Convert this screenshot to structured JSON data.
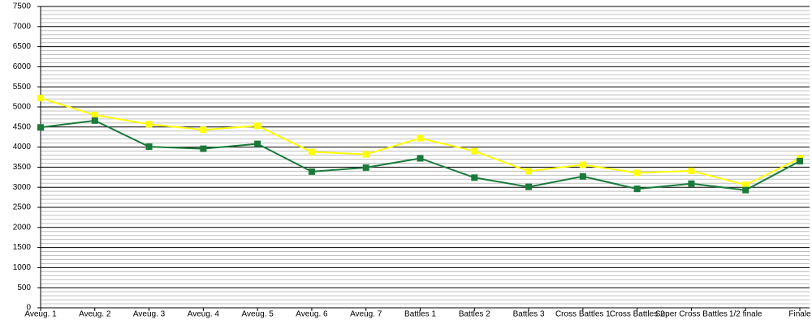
{
  "chart_data": {
    "type": "line",
    "categories": [
      "Aveug. 1",
      "Aveug. 2",
      "Aveug. 3",
      "Aveug. 4",
      "Aveug. 5",
      "Aveug. 6",
      "Aveug. 7",
      "Battles 1",
      "Battles 2",
      "Battles 3",
      "Cross Battles 1",
      "Cross Battles 2",
      "Super Cross Battles",
      "1/2 finale",
      "Finale"
    ],
    "series": [
      {
        "color": "#ffff00",
        "values": [
          5220,
          4800,
          4570,
          4430,
          4530,
          3880,
          3820,
          4220,
          3900,
          3400,
          3560,
          3360,
          3410,
          3060,
          3720
        ]
      },
      {
        "color": "#1a7a3a",
        "values": [
          4490,
          4660,
          4010,
          3960,
          4080,
          3390,
          3490,
          3720,
          3240,
          3010,
          3270,
          2960,
          3090,
          2930,
          3650
        ]
      }
    ],
    "ylim": [
      0,
      7500
    ],
    "yticks": [
      0,
      500,
      1000,
      1500,
      2000,
      2500,
      3000,
      3500,
      4000,
      4500,
      5000,
      5500,
      6000,
      6500,
      7000,
      7500
    ],
    "grid": true,
    "minor_grid_divisions": 5
  }
}
